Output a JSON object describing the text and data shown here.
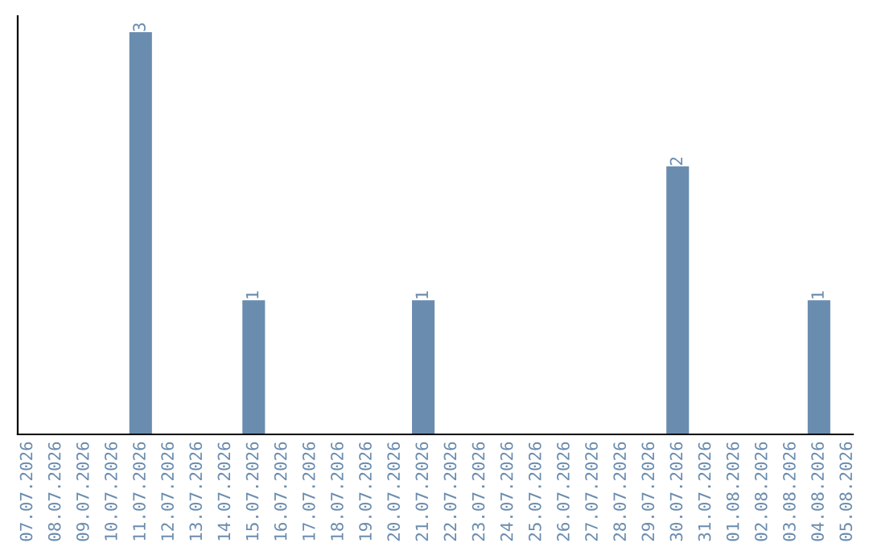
{
  "chart_data": {
    "type": "bar",
    "categories": [
      "07.07.2026",
      "08.07.2026",
      "09.07.2026",
      "10.07.2026",
      "11.07.2026",
      "12.07.2026",
      "13.07.2026",
      "14.07.2026",
      "15.07.2026",
      "16.07.2026",
      "17.07.2026",
      "18.07.2026",
      "19.07.2026",
      "20.07.2026",
      "21.07.2026",
      "22.07.2026",
      "23.07.2026",
      "24.07.2026",
      "25.07.2026",
      "26.07.2026",
      "27.07.2026",
      "28.07.2026",
      "29.07.2026",
      "30.07.2026",
      "31.07.2026",
      "01.08.2026",
      "02.08.2026",
      "03.08.2026",
      "04.08.2026",
      "05.08.2026"
    ],
    "values": [
      0,
      0,
      0,
      0,
      3,
      0,
      0,
      0,
      1,
      0,
      0,
      0,
      0,
      0,
      1,
      0,
      0,
      0,
      0,
      0,
      0,
      0,
      0,
      2,
      0,
      0,
      0,
      0,
      1,
      0
    ],
    "value_labels": [
      null,
      null,
      null,
      null,
      "3",
      null,
      null,
      null,
      "1",
      null,
      null,
      null,
      null,
      null,
      "1",
      null,
      null,
      null,
      null,
      null,
      null,
      null,
      null,
      "2",
      null,
      null,
      null,
      null,
      "1",
      null
    ],
    "color": "#6a8caf",
    "tick_labels": "x",
    "grid": false
  }
}
